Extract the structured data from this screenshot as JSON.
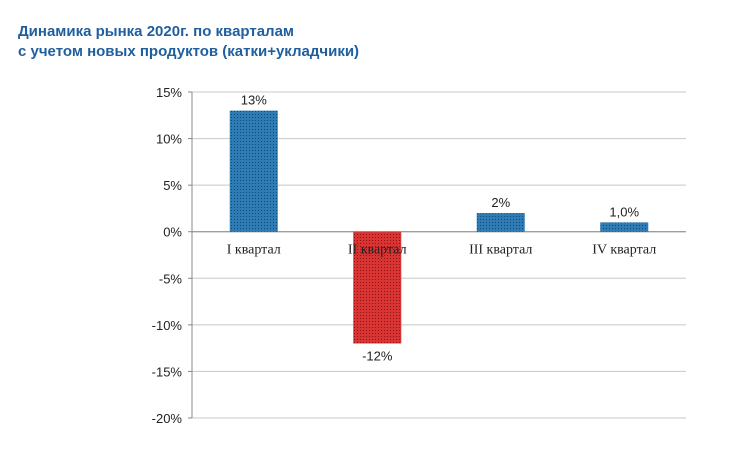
{
  "chart_data": {
    "type": "bar",
    "title": [
      "Динамика рынка 2020г.  по кварталам",
      "с учетом новых продуктов (катки+укладчики)"
    ],
    "categories": [
      "I квартал",
      "II квартал",
      "III квартал",
      "IV квартал"
    ],
    "values": [
      13,
      -12,
      2,
      1
    ],
    "data_labels": [
      "13%",
      "-12%",
      "2%",
      "1,0%"
    ],
    "y_ticks": [
      15,
      10,
      5,
      0,
      -5,
      -10,
      -15,
      -20
    ],
    "y_tick_labels": [
      "15%",
      "10%",
      "5%",
      "0%",
      "-5%",
      "-10%",
      "-15%",
      "-20%"
    ],
    "ylim": [
      -20,
      15
    ],
    "xlabel": "",
    "ylabel": "",
    "grid": true,
    "colors": {
      "positive": "#2e7cb3",
      "negative": "#d12a2a",
      "grid": "#c8c8c8",
      "title": "#1f5f9e"
    }
  }
}
